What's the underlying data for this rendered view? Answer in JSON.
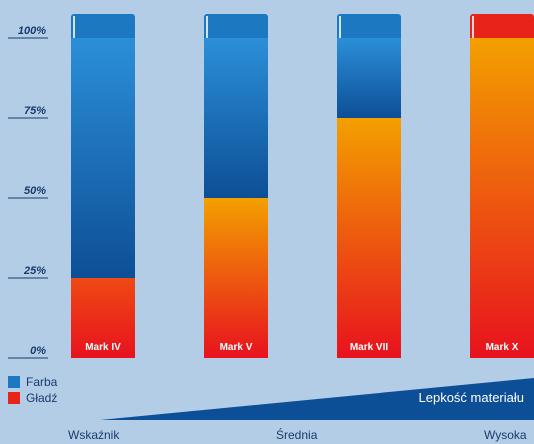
{
  "chart_data": {
    "type": "bar",
    "stacked": true,
    "categories": [
      "Mark IV",
      "Mark V",
      "Mark VII",
      "Mark X"
    ],
    "series": [
      {
        "name": "Gładź",
        "color": "#e8231a",
        "values": [
          25,
          50,
          75,
          100
        ]
      },
      {
        "name": "Farba",
        "color": "#1c78c0",
        "values": [
          75,
          50,
          25,
          0
        ]
      }
    ],
    "y_ticks": [
      "0%",
      "25%",
      "50%",
      "75%",
      "100%"
    ],
    "ylim": [
      0,
      100
    ],
    "legend_position": "bottom-left"
  },
  "legend": [
    {
      "label": "Farba",
      "color": "#1c78c0"
    },
    {
      "label": "Gładź",
      "color": "#e8231a"
    }
  ],
  "viscosity_label": "Lepkość materiału",
  "x_captions": {
    "left": "Wskaźnik",
    "middle": "Średnia",
    "right": "Wysoka"
  }
}
